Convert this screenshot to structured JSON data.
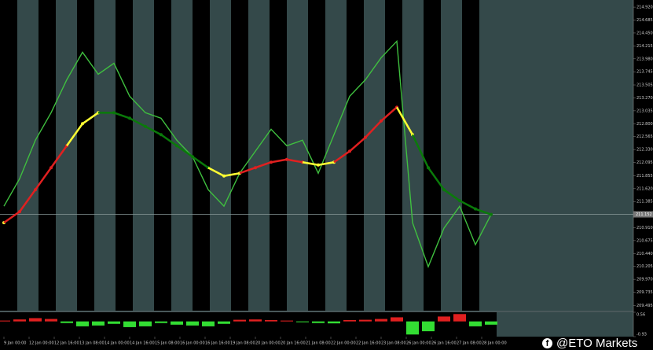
{
  "chart_data": [
    {
      "type": "line",
      "x": [
        0,
        1,
        2,
        3,
        4,
        5,
        6,
        7,
        8,
        9,
        10,
        11,
        12,
        13,
        14,
        15,
        16,
        17,
        18,
        19,
        20,
        21,
        22,
        23,
        24,
        25,
        26,
        27,
        28,
        29,
        30,
        31
      ],
      "series": [
        {
          "color": "#3fbf3f",
          "values": [
            211.3,
            211.8,
            212.5,
            213.0,
            213.6,
            214.1,
            213.7,
            213.9,
            213.3,
            213.0,
            212.9,
            212.5,
            212.2,
            211.6,
            211.3,
            211.9,
            212.3,
            212.7,
            212.4,
            212.5,
            211.9,
            212.6,
            213.3,
            213.6,
            214.0,
            214.3,
            211.0,
            210.2,
            210.9,
            211.3,
            210.6,
            211.15
          ]
        },
        {
          "colors": [
            "#ffff33",
            "#e02020",
            "#e02020",
            "#e02020",
            "#e02020",
            "#ffff33",
            "#ffff33",
            "#0a7a0a",
            "#0a7a0a",
            "#0a7a0a",
            "#0a7a0a",
            "#0a7a0a",
            "#0a7a0a",
            "#0a7a0a",
            "#ffff33",
            "#ffff33",
            "#e02020",
            "#e02020",
            "#e02020",
            "#e02020",
            "#ffff33",
            "#ffff33",
            "#e02020",
            "#e02020",
            "#e02020",
            "#e02020",
            "#ffff33",
            "#0a7a0a",
            "#0a7a0a",
            "#0a7a0a",
            "#0a7a0a",
            "#0a7a0a"
          ],
          "values": [
            211.0,
            211.2,
            211.6,
            212.0,
            212.4,
            212.8,
            213.0,
            213.0,
            212.9,
            212.75,
            212.6,
            212.4,
            212.2,
            212.0,
            211.85,
            211.9,
            212.0,
            212.1,
            212.15,
            212.1,
            212.05,
            212.1,
            212.3,
            212.55,
            212.85,
            213.1,
            212.6,
            212.0,
            211.6,
            211.4,
            211.25,
            211.15
          ]
        }
      ],
      "last_price": {
        "value": 211.152,
        "label": "211.152"
      },
      "xlim": [
        0,
        32.4
      ],
      "xticks": [
        {
          "value": 0,
          "label": "9 Jan 00:00"
        },
        {
          "value": 1.6,
          "label": "12 Jan 00:00"
        },
        {
          "value": 3.2,
          "label": "12 Jan 16:00"
        },
        {
          "value": 4.8,
          "label": "13 Jan 08:00"
        },
        {
          "value": 6.4,
          "label": "14 Jan 00:00"
        },
        {
          "value": 8,
          "label": "14 Jan 16:00"
        },
        {
          "value": 9.6,
          "label": "15 Jan 08:00"
        },
        {
          "value": 11.2,
          "label": "16 Jan 00:00"
        },
        {
          "value": 12.8,
          "label": "16 Jan 16:00"
        },
        {
          "value": 14.4,
          "label": "19 Jan 08:00"
        },
        {
          "value": 16,
          "label": "20 Jan 00:00"
        },
        {
          "value": 17.6,
          "label": "20 Jan 16:00"
        },
        {
          "value": 19.2,
          "label": "21 Jan 08:00"
        },
        {
          "value": 20.8,
          "label": "22 Jan 00:00"
        },
        {
          "value": 22.4,
          "label": "22 Jan 16:00"
        },
        {
          "value": 24,
          "label": "23 Jan 08:00"
        },
        {
          "value": 25.6,
          "label": "26 Jan 00:00"
        },
        {
          "value": 27.2,
          "label": "26 Jan 16:00"
        },
        {
          "value": 28.8,
          "label": "27 Jan 08:00"
        },
        {
          "value": 30.4,
          "label": "28 Jan 00:00"
        }
      ],
      "ylim": [
        209.4,
        215.05
      ],
      "yticks": [
        {
          "value": 214.92,
          "label": "214.920"
        },
        {
          "value": 214.685,
          "label": "214.685"
        },
        {
          "value": 214.45,
          "label": "214.450"
        },
        {
          "value": 214.215,
          "label": "214.215"
        },
        {
          "value": 213.98,
          "label": "213.980"
        },
        {
          "value": 213.745,
          "label": "213.745"
        },
        {
          "value": 213.505,
          "label": "213.505"
        },
        {
          "value": 213.27,
          "label": "213.270"
        },
        {
          "value": 213.035,
          "label": "213.035"
        },
        {
          "value": 212.8,
          "label": "212.800"
        },
        {
          "value": 212.565,
          "label": "212.565"
        },
        {
          "value": 212.33,
          "label": "212.330"
        },
        {
          "value": 212.095,
          "label": "212.095"
        },
        {
          "value": 211.855,
          "label": "211.855"
        },
        {
          "value": 211.62,
          "label": "211.620"
        },
        {
          "value": 211.385,
          "label": "211.385"
        },
        {
          "value": 210.91,
          "label": "210.910"
        },
        {
          "value": 210.675,
          "label": "210.675"
        },
        {
          "value": 210.44,
          "label": "210.440"
        },
        {
          "value": 210.205,
          "label": "210.205"
        },
        {
          "value": 209.97,
          "label": "209.970"
        },
        {
          "value": 209.735,
          "label": "209.735"
        },
        {
          "value": 209.495,
          "label": "209.495"
        }
      ]
    },
    {
      "type": "bar",
      "values": [
        0.05,
        0.12,
        0.2,
        0.15,
        -0.1,
        -0.3,
        -0.25,
        -0.15,
        -0.35,
        -0.3,
        -0.1,
        -0.2,
        -0.25,
        -0.3,
        -0.15,
        0.1,
        0.12,
        0.08,
        0.05,
        -0.05,
        -0.1,
        -0.12,
        0.08,
        0.1,
        0.15,
        0.25,
        -0.8,
        -0.6,
        0.3,
        0.45,
        -0.3,
        -0.2
      ],
      "pos_color": "#e02020",
      "neg_color": "#33dd33",
      "ylim": [
        -0.93,
        0.56
      ],
      "yticks": [
        0.56,
        -0.93
      ]
    }
  ],
  "watermark": "@ETO Markets"
}
